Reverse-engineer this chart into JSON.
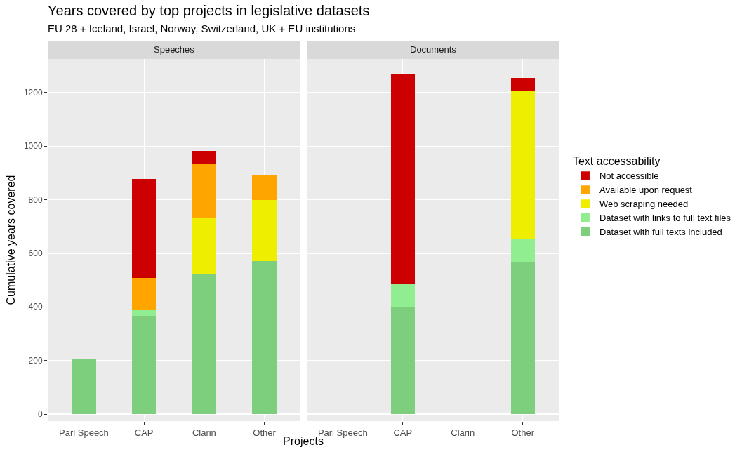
{
  "chart_data": [
    {
      "type": "bar",
      "title": "Years covered by top projects in legislative datasets",
      "subtitle": "EU 28 + Iceland, Israel, Norway, Switzerland, UK + EU institutions",
      "xlabel": "Projects",
      "ylabel": "Cumulative years covered",
      "annotations": [
        "Speeches"
      ],
      "categories": [
        "Parl Speech",
        "CAP",
        "Clarin",
        "Other"
      ],
      "stacked": true,
      "ylim": [
        -26,
        1325
      ],
      "yticks": [
        0,
        200,
        400,
        600,
        800,
        1000,
        1200
      ],
      "grid": true,
      "series": [
        {
          "color": "#7dce7d",
          "values": [
            205,
            366,
            522,
            571
          ]
        },
        {
          "color": "#90ee90",
          "values": [
            null,
            25,
            null,
            null
          ]
        },
        {
          "color": "#eeee00",
          "values": [
            null,
            null,
            210,
            228
          ]
        },
        {
          "color": "#ffa500",
          "values": [
            null,
            118,
            201,
            93
          ]
        },
        {
          "color": "#cc0000",
          "values": [
            null,
            369,
            50,
            null
          ]
        }
      ]
    },
    {
      "type": "bar",
      "annotations": [
        "Documents"
      ],
      "legend": "right",
      "legend_title": "Text accessability",
      "tick_labels": "x",
      "categories": [
        "Parl Speech",
        "CAP",
        "Clarin",
        "Other"
      ],
      "stacked": true,
      "ylim": [
        -26,
        1325
      ],
      "yticks": [
        0,
        200,
        400,
        600,
        800,
        1000,
        1200
      ],
      "grid": true,
      "series": [
        {
          "name": "Dataset with full texts included",
          "color": "#7dce7d",
          "values": [
            null,
            400,
            null,
            566
          ]
        },
        {
          "name": "Dataset with links to full text files",
          "color": "#90ee90",
          "values": [
            null,
            86,
            null,
            85
          ]
        },
        {
          "name": "Web scraping needed",
          "color": "#eeee00",
          "values": [
            null,
            null,
            null,
            555
          ]
        },
        {
          "name": "Available upon request",
          "color": "#ffa500",
          "values": [
            null,
            null,
            null,
            null
          ]
        },
        {
          "name": "Not accessible",
          "color": "#cc0000",
          "values": [
            null,
            783,
            null,
            48
          ]
        }
      ]
    }
  ]
}
